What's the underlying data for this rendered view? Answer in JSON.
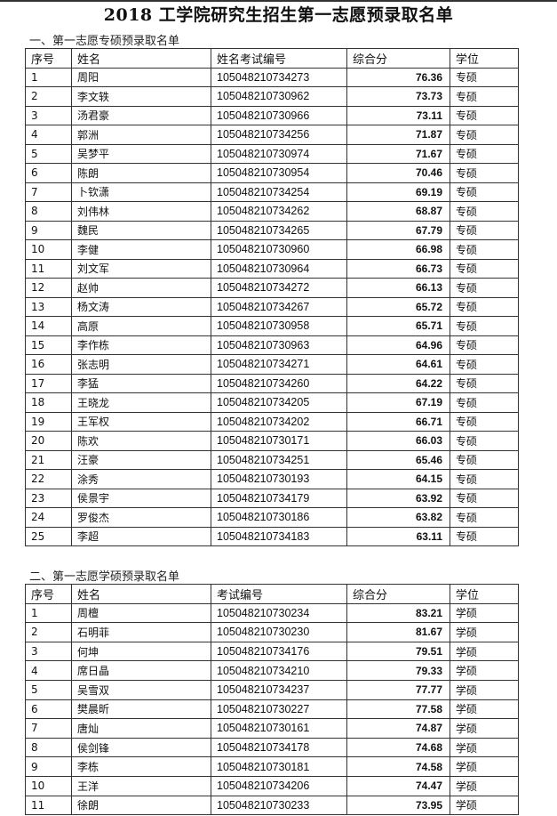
{
  "title": "2018 工学院研究生招生第一志愿预录取名单",
  "section1": {
    "label": "一、第一志愿专硕预录取名单",
    "headers": [
      "序号",
      "姓名",
      "姓名考试编号",
      "综合分",
      "学位"
    ],
    "rows": [
      [
        "1",
        "周阳",
        "105048210734273",
        "76.36",
        "专硕"
      ],
      [
        "2",
        "李文轶",
        "105048210730962",
        "73.73",
        "专硕"
      ],
      [
        "3",
        "汤君豪",
        "105048210730966",
        "73.11",
        "专硕"
      ],
      [
        "4",
        "郭洲",
        "105048210734256",
        "71.87",
        "专硕"
      ],
      [
        "5",
        "吴梦平",
        "105048210730974",
        "71.67",
        "专硕"
      ],
      [
        "6",
        "陈朗",
        "105048210730954",
        "70.46",
        "专硕"
      ],
      [
        "7",
        "卜钦潇",
        "105048210734254",
        "69.19",
        "专硕"
      ],
      [
        "8",
        "刘伟林",
        "105048210734262",
        "68.87",
        "专硕"
      ],
      [
        "9",
        "魏民",
        "105048210734265",
        "67.79",
        "专硕"
      ],
      [
        "10",
        "李健",
        "105048210730960",
        "66.98",
        "专硕"
      ],
      [
        "11",
        "刘文军",
        "105048210730964",
        "66.73",
        "专硕"
      ],
      [
        "12",
        "赵帅",
        "105048210734272",
        "66.13",
        "专硕"
      ],
      [
        "13",
        "杨文涛",
        "105048210734267",
        "65.72",
        "专硕"
      ],
      [
        "14",
        "高原",
        "105048210730958",
        "65.71",
        "专硕"
      ],
      [
        "15",
        "李作栋",
        "105048210730963",
        "64.96",
        "专硕"
      ],
      [
        "16",
        "张志明",
        "105048210734271",
        "64.61",
        "专硕"
      ],
      [
        "17",
        "李猛",
        "105048210734260",
        "64.22",
        "专硕"
      ],
      [
        "18",
        "王晓龙",
        "105048210734205",
        "67.19",
        "专硕"
      ],
      [
        "19",
        "王军权",
        "105048210734202",
        "66.71",
        "专硕"
      ],
      [
        "20",
        "陈欢",
        "105048210730171",
        "66.03",
        "专硕"
      ],
      [
        "21",
        "汪豪",
        "105048210734251",
        "65.46",
        "专硕"
      ],
      [
        "22",
        "涂秀",
        "105048210730193",
        "64.15",
        "专硕"
      ],
      [
        "23",
        "侯景宇",
        "105048210734179",
        "63.92",
        "专硕"
      ],
      [
        "24",
        "罗俊杰",
        "105048210730186",
        "63.82",
        "专硕"
      ],
      [
        "25",
        "李超",
        "105048210734183",
        "63.11",
        "专硕"
      ]
    ]
  },
  "section2": {
    "label": "二、第一志愿学硕预录取名单",
    "headers": [
      "序号",
      "姓名",
      "考试编号",
      "综合分",
      "学位"
    ],
    "rows": [
      [
        "1",
        "周檀",
        "105048210730234",
        "83.21",
        "学硕"
      ],
      [
        "2",
        "石明菲",
        "105048210730230",
        "81.67",
        "学硕"
      ],
      [
        "3",
        "何坤",
        "105048210734176",
        "79.51",
        "学硕"
      ],
      [
        "4",
        "席日晶",
        "105048210734210",
        "79.33",
        "学硕"
      ],
      [
        "5",
        "吴雪双",
        "105048210734237",
        "77.77",
        "学硕"
      ],
      [
        "6",
        "樊晨昕",
        "105048210730227",
        "77.58",
        "学硕"
      ],
      [
        "7",
        "唐灿",
        "105048210730161",
        "74.87",
        "学硕"
      ],
      [
        "8",
        "侯剑锋",
        "105048210734178",
        "74.68",
        "学硕"
      ],
      [
        "9",
        "李栋",
        "105048210730181",
        "74.58",
        "学硕"
      ],
      [
        "10",
        "王洋",
        "105048210734206",
        "74.47",
        "学硕"
      ],
      [
        "11",
        "徐朗",
        "105048210730233",
        "73.95",
        "学硕"
      ]
    ]
  }
}
